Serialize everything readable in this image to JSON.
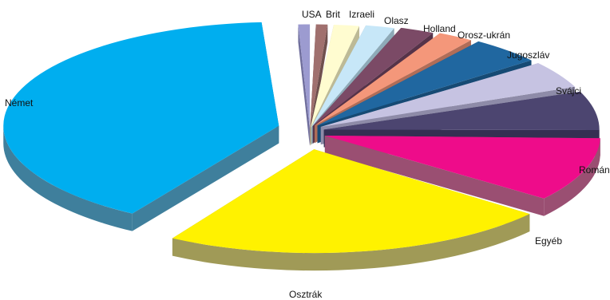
{
  "chart_data": {
    "type": "pie",
    "title": "",
    "style": "3d-exploded",
    "slices": [
      {
        "name": "USA",
        "value": 1.0,
        "color": "#9C9BD0",
        "side": "#6F6E9C"
      },
      {
        "name": "Brit",
        "value": 1.0,
        "color": "#A0706E",
        "side": "#70504E"
      },
      {
        "name": "Izraeli",
        "value": 1.8,
        "color": "#FFFCD0",
        "side": "#BDBA96"
      },
      {
        "name": "Olasz",
        "value": 2.0,
        "color": "#C7E7F8",
        "side": "#8EAAB8"
      },
      {
        "name": "Holland",
        "value": 2.3,
        "color": "#7B4A66",
        "side": "#563349"
      },
      {
        "name": "Orosz-ukrán",
        "value": 2.4,
        "color": "#F4977A",
        "side": "#B06D58"
      },
      {
        "name": "Jugoszláv",
        "value": 4.5,
        "color": "#2067A0",
        "side": "#164A74"
      },
      {
        "name": "Svájci",
        "value": 4.5,
        "color": "#C6C3E2",
        "side": "#8E8BA8"
      },
      {
        "name": "Román",
        "value": 6.3,
        "color": "#4C4570",
        "side": "#352F52"
      },
      {
        "name": "Egyéb",
        "value": 10.2,
        "color": "#EE0C8A",
        "side": "#9A4F72"
      },
      {
        "name": "Osztrák",
        "value": 23.0,
        "color": "#FFF200",
        "side": "#A09A57"
      },
      {
        "name": "Német",
        "value": 40.0,
        "color": "#00AEEF",
        "side": "#3F7F9C"
      }
    ]
  }
}
